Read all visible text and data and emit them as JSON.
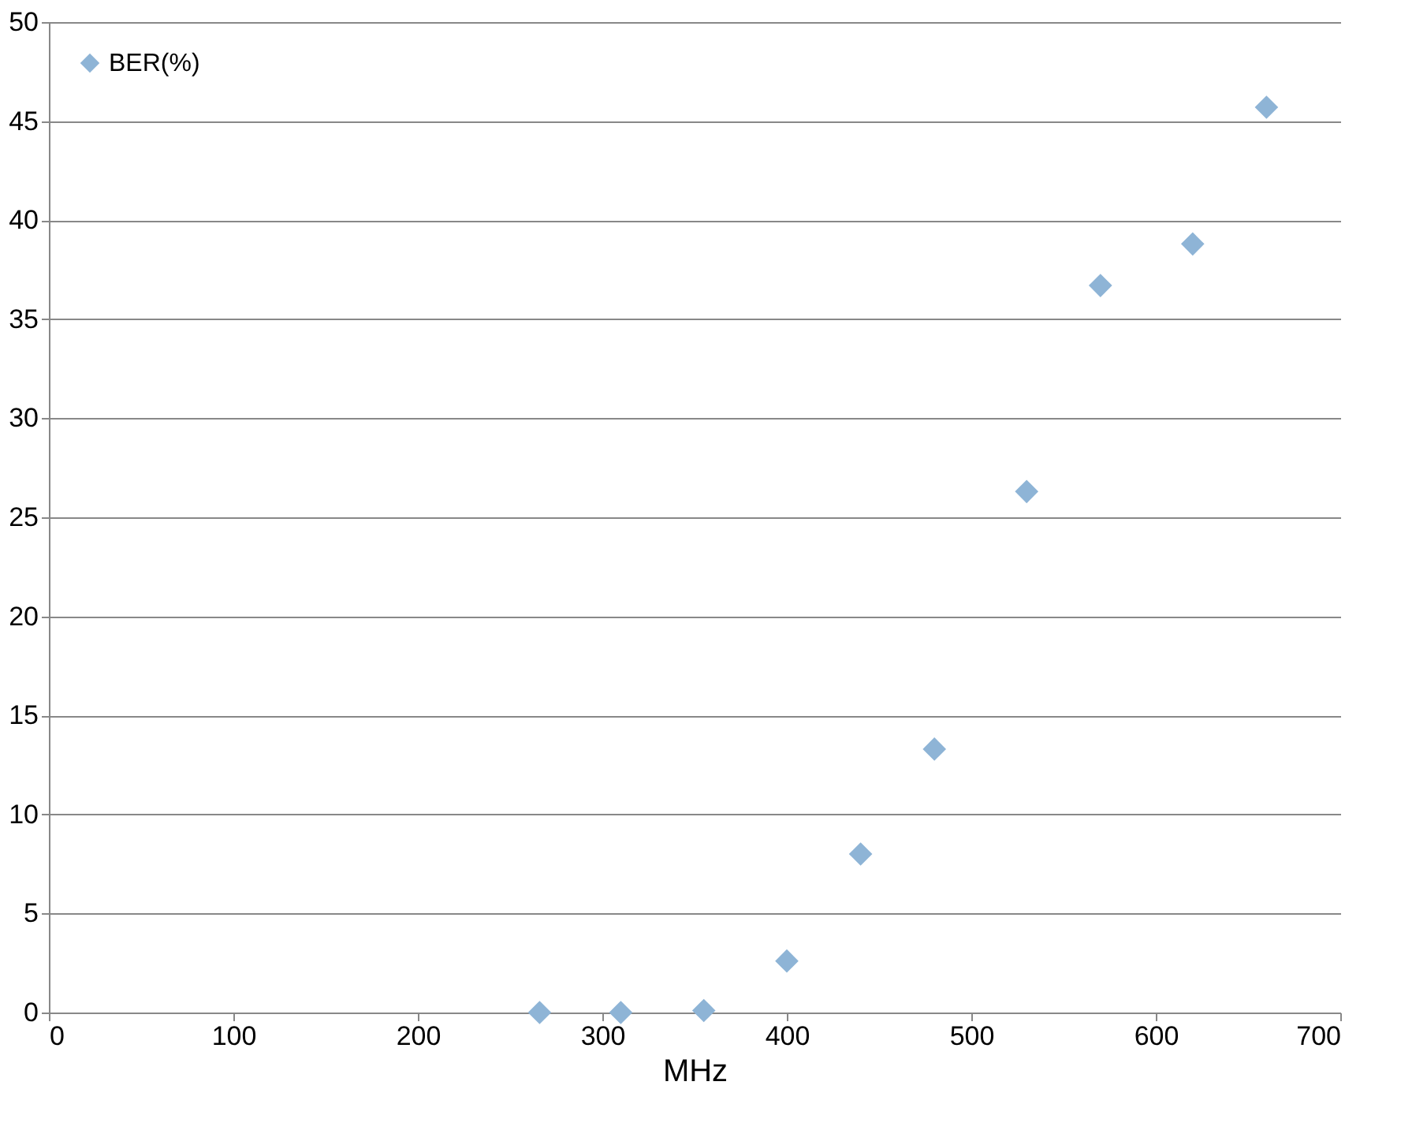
{
  "chart_data": {
    "type": "scatter",
    "xlabel": "MHz",
    "x": [
      266,
      310,
      355,
      400,
      440,
      480,
      530,
      570,
      620,
      660
    ],
    "series": [
      {
        "name": "BER(%)",
        "color": "#8eb4d6",
        "values": [
          0,
          0,
          0.1,
          2.6,
          8.0,
          13.3,
          26.3,
          36.7,
          38.8,
          45.7
        ]
      }
    ],
    "xlim": [
      0,
      700
    ],
    "xticks": [
      0,
      100,
      200,
      300,
      400,
      500,
      600,
      700
    ],
    "ylim": [
      0,
      50
    ],
    "yticks": [
      0,
      5,
      10,
      15,
      20,
      25,
      30,
      35,
      40,
      45,
      50
    ],
    "grid": "y",
    "legend": "top left",
    "marker": "diamond"
  }
}
